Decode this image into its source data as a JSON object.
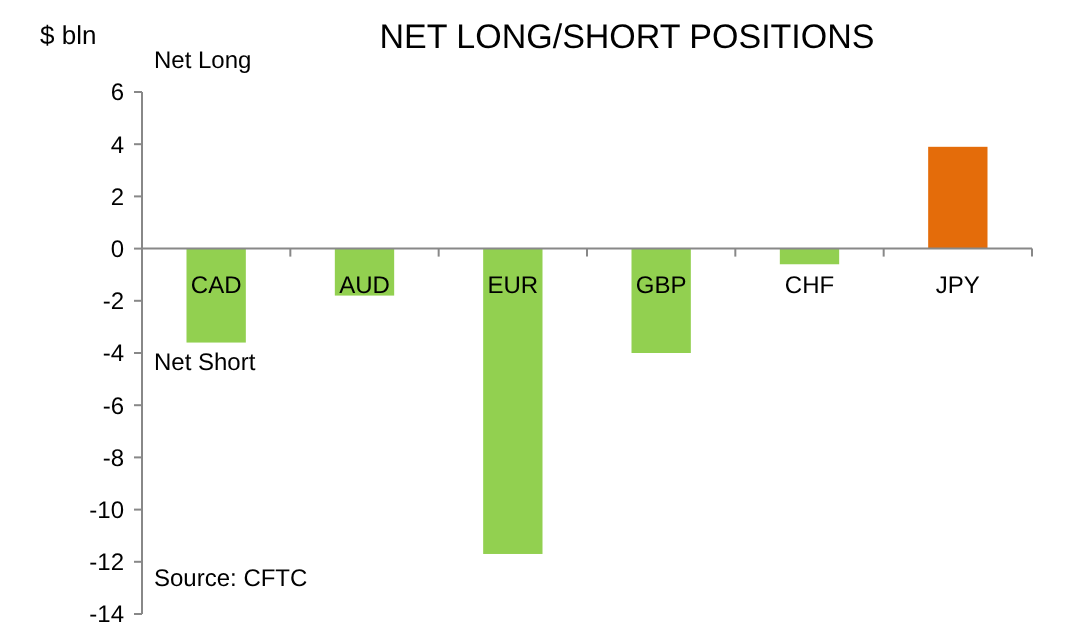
{
  "chart_data": {
    "type": "bar",
    "title": "NET LONG/SHORT POSITIONS",
    "ylabel": "$ bln",
    "categories": [
      "CAD",
      "AUD",
      "EUR",
      "GBP",
      "CHF",
      "JPY"
    ],
    "values": [
      -3.6,
      -1.8,
      -11.7,
      -4.0,
      -0.6,
      3.9
    ],
    "colors": [
      "#92d050",
      "#92d050",
      "#92d050",
      "#92d050",
      "#92d050",
      "#e46c0a"
    ],
    "ylim": [
      -14,
      6
    ],
    "yticks": [
      -14,
      -12,
      -10,
      -8,
      -6,
      -4,
      -2,
      0,
      2,
      4,
      6
    ],
    "grid": false,
    "annotations": [
      "Net Long",
      "Net Short",
      "Source: CFTC"
    ]
  }
}
